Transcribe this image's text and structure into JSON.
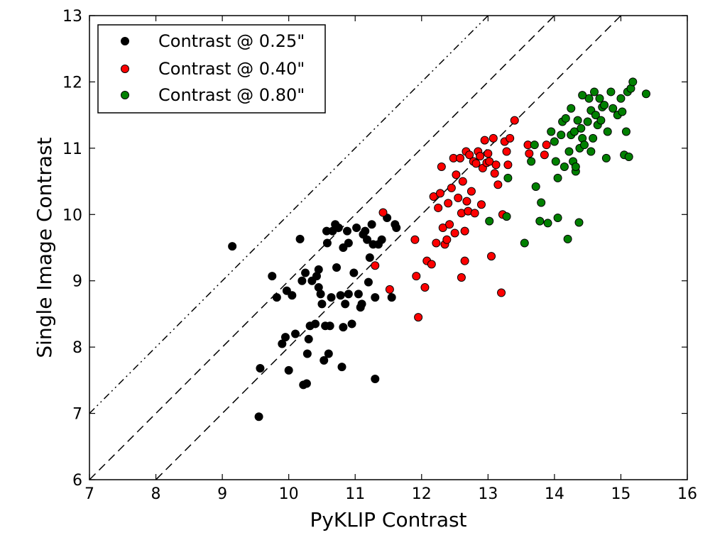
{
  "chart_data": {
    "type": "scatter",
    "title": "",
    "xlabel": "PyKLIP Contrast",
    "ylabel": "Single Image Contrast",
    "xlim": [
      7,
      16
    ],
    "ylim": [
      6,
      13
    ],
    "xticks": [
      "7",
      "8",
      "9",
      "10",
      "11",
      "12",
      "13",
      "14",
      "15",
      "16"
    ],
    "yticks": [
      "6",
      "7",
      "8",
      "9",
      "10",
      "11",
      "12",
      "13"
    ],
    "grid": false,
    "legend_position": "top-left",
    "reference_lines": [
      {
        "style": "dash-dot-dot",
        "slope": 1,
        "intercept": 0
      },
      {
        "style": "dashed",
        "slope": 1,
        "intercept": -1
      },
      {
        "style": "dashed",
        "slope": 1,
        "intercept": -2
      }
    ],
    "series": [
      {
        "name": "Contrast @ 0.25\"",
        "color": "#000000",
        "points": [
          [
            9.15,
            9.52
          ],
          [
            9.55,
            6.95
          ],
          [
            9.57,
            7.68
          ],
          [
            9.75,
            9.07
          ],
          [
            9.82,
            8.75
          ],
          [
            9.9,
            8.05
          ],
          [
            9.95,
            8.15
          ],
          [
            9.97,
            8.85
          ],
          [
            10.0,
            7.65
          ],
          [
            10.05,
            8.78
          ],
          [
            10.1,
            8.2
          ],
          [
            10.17,
            9.63
          ],
          [
            10.2,
            9.0
          ],
          [
            10.22,
            7.43
          ],
          [
            10.25,
            9.12
          ],
          [
            10.27,
            7.45
          ],
          [
            10.28,
            7.9
          ],
          [
            10.3,
            8.12
          ],
          [
            10.32,
            8.32
          ],
          [
            10.35,
            9.0
          ],
          [
            10.4,
            8.35
          ],
          [
            10.42,
            9.07
          ],
          [
            10.45,
            9.17
          ],
          [
            10.45,
            8.9
          ],
          [
            10.48,
            8.8
          ],
          [
            10.5,
            8.65
          ],
          [
            10.53,
            7.8
          ],
          [
            10.55,
            8.32
          ],
          [
            10.57,
            9.75
          ],
          [
            10.58,
            9.57
          ],
          [
            10.6,
            7.9
          ],
          [
            10.62,
            8.32
          ],
          [
            10.64,
            8.75
          ],
          [
            10.66,
            9.75
          ],
          [
            10.7,
            9.85
          ],
          [
            10.72,
            9.2
          ],
          [
            10.75,
            9.8
          ],
          [
            10.78,
            8.78
          ],
          [
            10.8,
            7.7
          ],
          [
            10.82,
            8.3
          ],
          [
            10.82,
            9.5
          ],
          [
            10.85,
            8.65
          ],
          [
            10.88,
            9.75
          ],
          [
            10.9,
            8.8
          ],
          [
            10.9,
            9.57
          ],
          [
            10.95,
            8.35
          ],
          [
            10.98,
            9.12
          ],
          [
            11.02,
            9.8
          ],
          [
            11.05,
            8.8
          ],
          [
            11.08,
            8.6
          ],
          [
            11.1,
            8.65
          ],
          [
            11.12,
            9.7
          ],
          [
            11.15,
            9.75
          ],
          [
            11.18,
            9.62
          ],
          [
            11.2,
            8.98
          ],
          [
            11.22,
            9.35
          ],
          [
            11.25,
            9.85
          ],
          [
            11.27,
            9.55
          ],
          [
            11.3,
            8.75
          ],
          [
            11.3,
            7.52
          ],
          [
            11.35,
            9.55
          ],
          [
            11.4,
            9.62
          ],
          [
            11.48,
            9.95
          ],
          [
            11.55,
            8.75
          ],
          [
            11.6,
            9.85
          ],
          [
            11.62,
            9.8
          ]
        ]
      },
      {
        "name": "Contrast @ 0.40\"",
        "color": "#ff0000",
        "points": [
          [
            11.3,
            9.23
          ],
          [
            11.42,
            10.03
          ],
          [
            11.52,
            8.87
          ],
          [
            11.9,
            9.62
          ],
          [
            11.92,
            9.07
          ],
          [
            11.95,
            8.45
          ],
          [
            12.05,
            8.9
          ],
          [
            12.08,
            9.3
          ],
          [
            12.15,
            9.25
          ],
          [
            12.18,
            10.27
          ],
          [
            12.22,
            9.57
          ],
          [
            12.25,
            10.1
          ],
          [
            12.28,
            10.32
          ],
          [
            12.3,
            10.72
          ],
          [
            12.32,
            9.8
          ],
          [
            12.35,
            9.55
          ],
          [
            12.38,
            9.62
          ],
          [
            12.4,
            10.17
          ],
          [
            12.42,
            9.85
          ],
          [
            12.45,
            10.4
          ],
          [
            12.48,
            10.85
          ],
          [
            12.5,
            9.72
          ],
          [
            12.52,
            10.6
          ],
          [
            12.55,
            10.25
          ],
          [
            12.58,
            10.85
          ],
          [
            12.6,
            9.05
          ],
          [
            12.6,
            10.02
          ],
          [
            12.62,
            10.5
          ],
          [
            12.65,
            9.3
          ],
          [
            12.65,
            9.75
          ],
          [
            12.67,
            10.95
          ],
          [
            12.68,
            10.2
          ],
          [
            12.7,
            10.05
          ],
          [
            12.72,
            10.9
          ],
          [
            12.75,
            10.35
          ],
          [
            12.78,
            10.8
          ],
          [
            12.8,
            10.02
          ],
          [
            12.82,
            10.77
          ],
          [
            12.85,
            10.95
          ],
          [
            12.88,
            10.88
          ],
          [
            12.9,
            10.15
          ],
          [
            12.92,
            10.7
          ],
          [
            12.95,
            11.12
          ],
          [
            12.98,
            10.78
          ],
          [
            13.0,
            10.92
          ],
          [
            13.02,
            10.8
          ],
          [
            13.05,
            9.37
          ],
          [
            13.08,
            11.15
          ],
          [
            13.1,
            10.62
          ],
          [
            13.12,
            10.75
          ],
          [
            13.15,
            10.45
          ],
          [
            13.2,
            8.82
          ],
          [
            13.22,
            10.0
          ],
          [
            13.25,
            11.1
          ],
          [
            13.28,
            10.95
          ],
          [
            13.3,
            10.75
          ],
          [
            13.33,
            11.15
          ],
          [
            13.4,
            11.42
          ],
          [
            13.6,
            11.05
          ],
          [
            13.62,
            10.92
          ],
          [
            13.85,
            10.9
          ],
          [
            13.88,
            11.05
          ]
        ]
      },
      {
        "name": "Contrast @ 0.80\"",
        "color": "#008000",
        "points": [
          [
            13.02,
            9.9
          ],
          [
            13.28,
            9.97
          ],
          [
            13.3,
            10.55
          ],
          [
            13.55,
            9.57
          ],
          [
            13.65,
            10.8
          ],
          [
            13.7,
            11.05
          ],
          [
            13.72,
            10.42
          ],
          [
            13.78,
            9.9
          ],
          [
            13.8,
            10.18
          ],
          [
            13.9,
            9.87
          ],
          [
            13.95,
            11.25
          ],
          [
            14.0,
            11.1
          ],
          [
            14.02,
            10.8
          ],
          [
            14.05,
            9.95
          ],
          [
            14.05,
            10.55
          ],
          [
            14.1,
            11.2
          ],
          [
            14.12,
            11.4
          ],
          [
            14.15,
            10.72
          ],
          [
            14.17,
            11.45
          ],
          [
            14.2,
            9.63
          ],
          [
            14.22,
            10.95
          ],
          [
            14.25,
            11.2
          ],
          [
            14.28,
            10.8
          ],
          [
            14.3,
            11.25
          ],
          [
            14.32,
            10.65
          ],
          [
            14.35,
            11.42
          ],
          [
            14.38,
            11.0
          ],
          [
            14.4,
            11.3
          ],
          [
            14.42,
            11.15
          ],
          [
            14.45,
            11.05
          ],
          [
            14.5,
            11.4
          ],
          [
            14.52,
            11.75
          ],
          [
            14.55,
            10.95
          ],
          [
            14.55,
            11.57
          ],
          [
            14.58,
            11.15
          ],
          [
            14.6,
            11.85
          ],
          [
            14.62,
            11.5
          ],
          [
            14.65,
            11.35
          ],
          [
            14.68,
            11.75
          ],
          [
            14.7,
            11.42
          ],
          [
            14.72,
            11.62
          ],
          [
            14.75,
            11.65
          ],
          [
            14.78,
            10.85
          ],
          [
            14.8,
            11.25
          ],
          [
            14.85,
            11.85
          ],
          [
            14.88,
            11.6
          ],
          [
            14.95,
            11.5
          ],
          [
            15.0,
            11.75
          ],
          [
            15.02,
            11.55
          ],
          [
            15.05,
            10.9
          ],
          [
            15.08,
            11.25
          ],
          [
            15.1,
            11.85
          ],
          [
            15.12,
            10.87
          ],
          [
            15.15,
            11.9
          ],
          [
            15.18,
            12.0
          ],
          [
            15.38,
            11.82
          ],
          [
            14.25,
            11.6
          ],
          [
            14.32,
            10.72
          ],
          [
            14.42,
            11.8
          ],
          [
            14.37,
            9.88
          ]
        ]
      }
    ]
  }
}
